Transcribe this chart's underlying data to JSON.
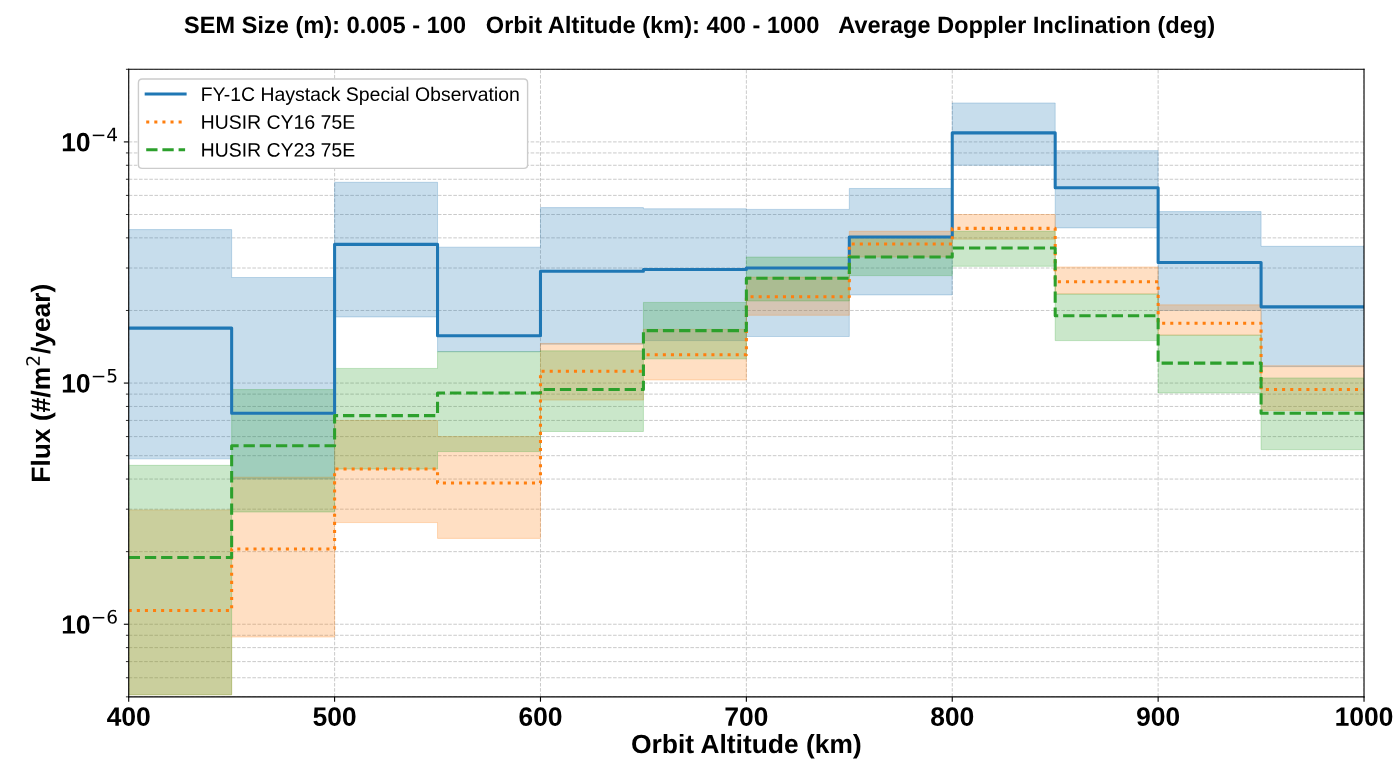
{
  "chart_data": {
    "type": "step",
    "title": "SEM Size (m): 0.005 - 100   Orbit Altitude (km): 400 - 1000   Average Doppler Inclination (deg)",
    "xlabel": "Orbit Altitude (km)",
    "ylabel": "Flux (#/m$^{2}$/year)",
    "x": [
      400,
      450,
      500,
      550,
      600,
      650,
      700,
      750,
      800,
      850,
      900,
      950,
      1000
    ],
    "series": [
      {
        "name": "FY-1C Haystack Special Observation",
        "color": "#1f77b4",
        "line_style": "solid",
        "values": [
          1.69e-05,
          7.5e-06,
          3.76e-05,
          1.57e-05,
          2.91e-05,
          2.96e-05,
          3e-05,
          4.03e-05,
          0.000109,
          6.46e-05,
          3.16e-05,
          2.07e-05,
          2.07e-05
        ],
        "lower": [
          4.85e-06,
          4e-06,
          1.88e-05,
          1.35e-05,
          1.45e-05,
          1.5e-05,
          1.56e-05,
          2.32e-05,
          8e-05,
          4.4e-05,
          2e-05,
          1.17e-05,
          1.17e-05
        ],
        "upper": [
          4.33e-05,
          2.74e-05,
          6.8e-05,
          3.66e-05,
          5.34e-05,
          5.28e-05,
          5.25e-05,
          6.41e-05,
          0.000145,
          9.2e-05,
          5.14e-05,
          3.69e-05,
          3.69e-05
        ]
      },
      {
        "name": "HUSIR CY16 75E",
        "color": "#ff7f0e",
        "line_style": "dotted",
        "values": [
          1.14e-06,
          2.05e-06,
          4.4e-06,
          3.85e-06,
          1.12e-05,
          1.31e-05,
          2.28e-05,
          3.77e-05,
          4.38e-05,
          2.63e-05,
          1.77e-05,
          9.4e-06,
          9.4e-06
        ],
        "lower": [
          5.1e-07,
          8.85e-07,
          2.64e-06,
          2.27e-06,
          8.5e-06,
          1.03e-05,
          1.91e-05,
          3.33e-05,
          3.95e-05,
          2.34e-05,
          1.58e-05,
          7.7e-06,
          7.7e-06
        ],
        "upper": [
          2.98e-06,
          4.07e-06,
          7e-06,
          6e-06,
          1.46e-05,
          1.67e-05,
          2.75e-05,
          4.26e-05,
          5e-05,
          3.03e-05,
          2.11e-05,
          1.18e-05,
          1.18e-05
        ]
      },
      {
        "name": "HUSIR CY23 75E",
        "color": "#2ca02c",
        "line_style": "dashed",
        "values": [
          1.89e-06,
          5.5e-06,
          7.33e-06,
          9.1e-06,
          9.4e-06,
          1.65e-05,
          2.72e-05,
          3.33e-05,
          3.63e-05,
          1.9e-05,
          1.21e-05,
          7.5e-06,
          7.5e-06
        ],
        "lower": [
          5.1e-07,
          2.92e-06,
          4.4e-06,
          5.2e-06,
          6.3e-06,
          1.26e-05,
          2.19e-05,
          2.79e-05,
          3.05e-05,
          1.5e-05,
          9.1e-06,
          5.3e-06,
          5.3e-06
        ],
        "upper": [
          4.56e-06,
          9.4e-06,
          1.15e-05,
          1.35e-05,
          1.36e-05,
          2.16e-05,
          3.33e-05,
          4.03e-05,
          4.26e-05,
          2.34e-05,
          1.58e-05,
          1.05e-05,
          1.05e-05
        ]
      }
    ],
    "log": true,
    "xlim": [
      400,
      1000
    ],
    "xticks": [
      400,
      500,
      600,
      700,
      800,
      900,
      1000
    ],
    "ylim": [
      5e-07,
      0.0002
    ],
    "yticks": [
      {
        "value": 1e-06,
        "label": "10$^{−6}$"
      },
      {
        "value": 1e-05,
        "label": "10$^{−5}$"
      },
      {
        "value": 0.0001,
        "label": "10$^{−4}$"
      }
    ],
    "grid": true,
    "legend": "top left"
  }
}
